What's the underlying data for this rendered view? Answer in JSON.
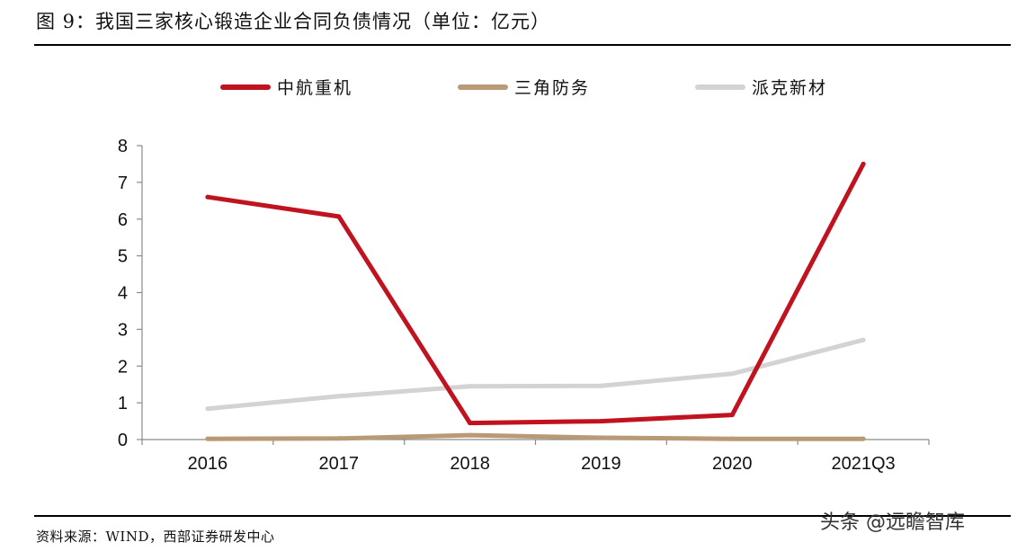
{
  "title": "图 9：我国三家核心锻造企业合同负债情况（单位：亿元）",
  "source": "资料来源：WIND，西部证券研发中心",
  "watermark": "头条 @远瞻智库",
  "chart_data": {
    "type": "line",
    "categories": [
      "2016",
      "2017",
      "2018",
      "2019",
      "2020",
      "2021Q3"
    ],
    "ylim": [
      0,
      8
    ],
    "yticks": [
      "0",
      "1",
      "2",
      "3",
      "4",
      "5",
      "6",
      "7",
      "8"
    ],
    "grid": false,
    "legend_position": "top",
    "series": [
      {
        "name": "中航重机",
        "color": "#c1121f",
        "values": [
          6.6,
          6.07,
          0.45,
          0.5,
          0.67,
          7.5
        ]
      },
      {
        "name": "三角防务",
        "color": "#b89a77",
        "values": [
          0.02,
          0.03,
          0.12,
          0.05,
          0.02,
          0.02
        ]
      },
      {
        "name": "派克新材",
        "color": "#d3d3d3",
        "values": [
          0.84,
          1.18,
          1.45,
          1.46,
          1.79,
          2.71
        ]
      }
    ]
  }
}
